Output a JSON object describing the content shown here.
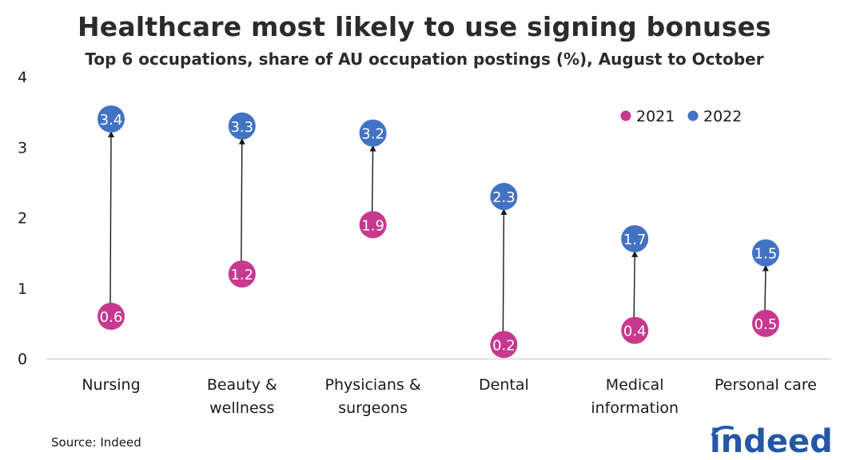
{
  "title": "Healthcare most likely to use signing bonuses",
  "subtitle": "Top 6 occupations, share of AU occupation postings (%), August to October",
  "source": "Source: Indeed",
  "brand": "indeed",
  "chart_data": {
    "type": "dumbbell",
    "categories": [
      [
        "Nursing"
      ],
      [
        "Beauty &",
        "wellness"
      ],
      [
        "Physicians &",
        "surgeons"
      ],
      [
        "Dental"
      ],
      [
        "Medical",
        "information"
      ],
      [
        "Personal care"
      ]
    ],
    "series": [
      {
        "name": "2021",
        "color": "#c8388f",
        "values": [
          0.6,
          1.2,
          1.9,
          0.2,
          0.4,
          0.5
        ]
      },
      {
        "name": "2022",
        "color": "#4272c4",
        "values": [
          3.4,
          3.3,
          3.2,
          2.3,
          1.7,
          1.5
        ]
      }
    ],
    "y_ticks": [
      0,
      1,
      2,
      3,
      4
    ],
    "ylim": [
      0,
      4
    ],
    "legend_position": "top-right",
    "xlabel": "",
    "ylabel": ""
  }
}
